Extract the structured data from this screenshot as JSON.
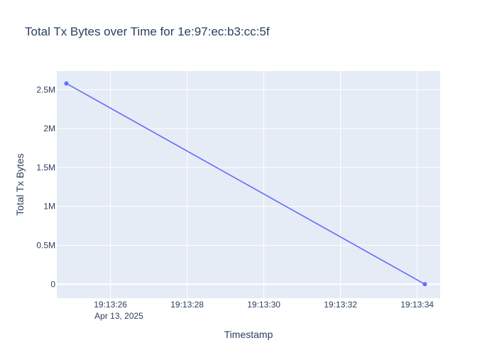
{
  "chart_data": {
    "type": "line",
    "title": "Total Tx Bytes over Time for 1e:97:ec:b3:cc:5f",
    "xlabel": "Timestamp",
    "ylabel": "Total Tx Bytes",
    "x_date_label": "Apr 13, 2025",
    "x_ticks": [
      "19:13:26",
      "19:13:28",
      "19:13:30",
      "19:13:32",
      "19:13:34"
    ],
    "y_ticks": [
      "0",
      "0.5M",
      "1M",
      "1.5M",
      "2M",
      "2.5M"
    ],
    "xlim": [
      "2025-04-13 19:13:24.6",
      "2025-04-13 19:13:34.6"
    ],
    "ylim": [
      -180000,
      2740000
    ],
    "grid": true,
    "series": [
      {
        "x": [
          "2025-04-13 19:13:24.85",
          "2025-04-13 19:13:34.2"
        ],
        "y": [
          2580000,
          0
        ]
      }
    ],
    "colors": {
      "line": "#636efa",
      "plot_bg": "#e5ecf6",
      "grid": "#ffffff",
      "text": "#2a3f5f"
    }
  }
}
